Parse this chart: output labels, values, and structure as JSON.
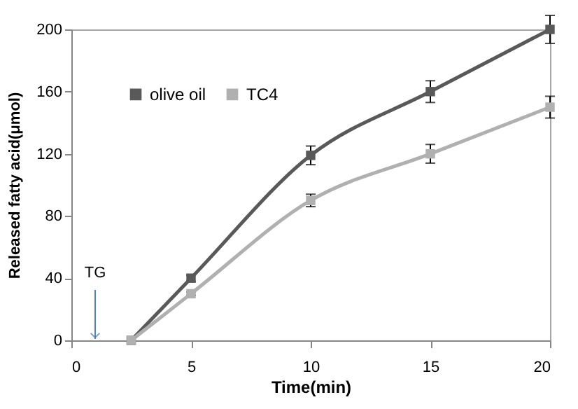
{
  "chart_data": {
    "type": "line",
    "xlabel": "Time(min)",
    "ylabel": "Released fatty acid(μmol)",
    "x": [
      2.5,
      5,
      10,
      15,
      20
    ],
    "series": [
      {
        "name": "olive oil",
        "color": "#595959",
        "values": [
          0,
          40,
          119,
          160,
          200
        ],
        "errors": [
          null,
          2,
          6,
          7,
          9
        ]
      },
      {
        "name": "TC4",
        "color": "#b0b0b0",
        "values": [
          0,
          30,
          90,
          120,
          150
        ],
        "errors": [
          null,
          1,
          4,
          6,
          7
        ]
      }
    ],
    "xlim": [
      0,
      20
    ],
    "xticks": [
      0,
      5,
      10,
      15,
      20
    ],
    "ylim": [
      0,
      200
    ],
    "yticks": [
      0,
      40,
      80,
      120,
      160,
      200
    ],
    "annotations": [
      "TG"
    ],
    "marker": "square",
    "legend": "top left",
    "grid": false
  }
}
